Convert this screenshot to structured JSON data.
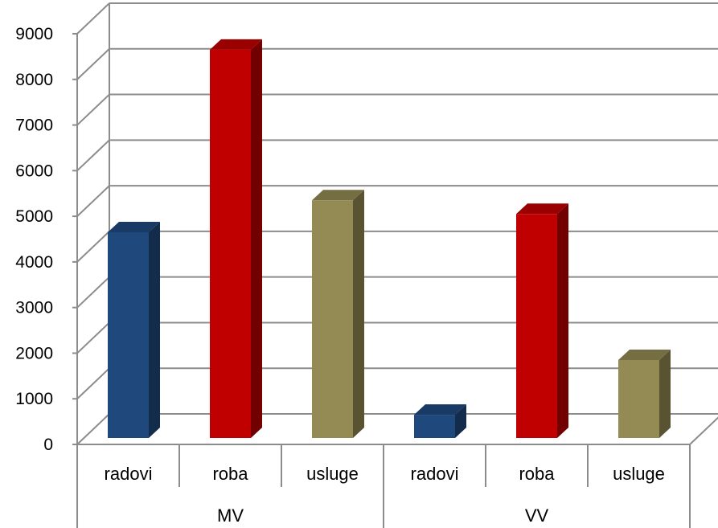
{
  "chart_data": {
    "type": "bar",
    "style": "3d-clustered-column",
    "groups": [
      {
        "label": "MV",
        "categories": [
          "radovi",
          "roba",
          "usluge"
        ],
        "values": [
          4650,
          8650,
          5350
        ]
      },
      {
        "label": "VV",
        "categories": [
          "radovi",
          "roba",
          "usluge"
        ],
        "values": [
          650,
          5050,
          1850
        ]
      }
    ],
    "category_colors": {
      "radovi": "#1F497D",
      "roba": "#C00000",
      "usluge": "#948A54"
    },
    "yticks": [
      "0",
      "1000",
      "2000",
      "3000",
      "4000",
      "5000",
      "6000",
      "7000",
      "8000",
      "9000"
    ],
    "ylim": [
      0,
      9000
    ],
    "grid": true,
    "legend": "none"
  }
}
